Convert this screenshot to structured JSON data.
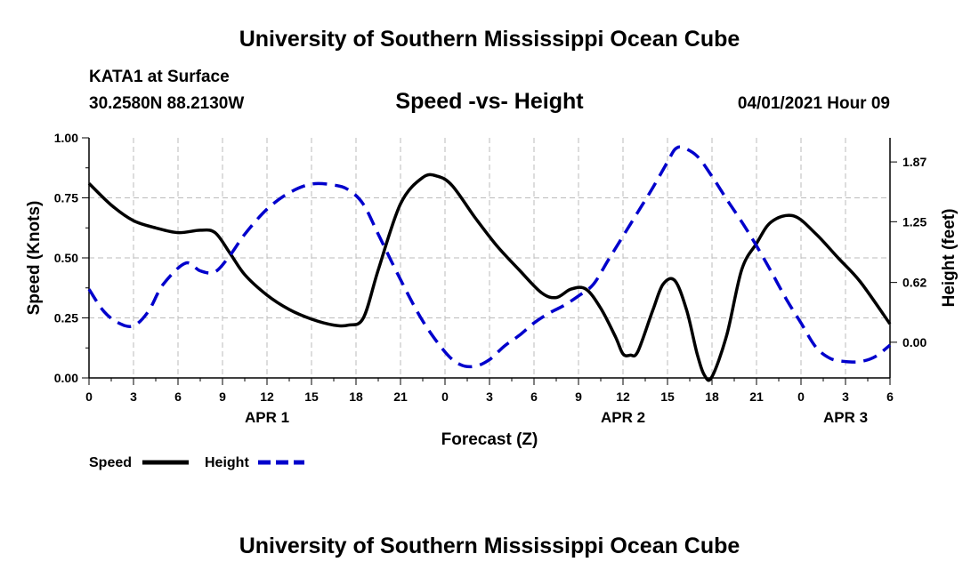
{
  "header": {
    "title": "University of Southern Mississippi Ocean Cube",
    "station": "KATA1 at Surface",
    "coordinates": "30.2580N  88.2130W",
    "datetime": "04/01/2021 Hour 09"
  },
  "footer": {
    "title": "University of Southern Mississippi Ocean Cube"
  },
  "chart_data": {
    "type": "line",
    "title": "Speed -vs- Height",
    "xlabel": "Forecast (Z)",
    "ylabel": "Speed (Knots)",
    "ylabel_right": "Height (feet)",
    "xlim": [
      0,
      54
    ],
    "ylim": [
      0,
      1.0
    ],
    "ylim_right": [
      -0.37,
      2.12
    ],
    "grid": true,
    "x_ticks": [
      0,
      3,
      6,
      9,
      12,
      15,
      18,
      21,
      24,
      27,
      30,
      33,
      36,
      39,
      42,
      45,
      48,
      51,
      54
    ],
    "x_tick_labels": [
      "0",
      "3",
      "6",
      "9",
      "12",
      "15",
      "18",
      "21",
      "0",
      "3",
      "6",
      "9",
      "12",
      "15",
      "18",
      "21",
      "0",
      "3",
      "6"
    ],
    "y_ticks": [
      0,
      0.25,
      0.5,
      0.75,
      1.0
    ],
    "y_tick_labels": [
      "0.00",
      "0.25",
      "0.50",
      "0.75",
      "1.00"
    ],
    "y_right_ticks": [
      0,
      0.62,
      1.25,
      1.87
    ],
    "y_right_tick_labels": [
      "0.00",
      "0.62",
      "1.25",
      "1.87"
    ],
    "date_labels": [
      {
        "x": 12,
        "label": "APR 1"
      },
      {
        "x": 36,
        "label": "APR 2"
      },
      {
        "x": 51,
        "label": "APR 3"
      }
    ],
    "legend": {
      "position": "bottom-left",
      "entries": [
        "Speed",
        "Height"
      ]
    },
    "series": [
      {
        "name": "Speed",
        "axis": "left",
        "color": "#000000",
        "dash": "solid",
        "x": [
          0,
          1.5,
          3,
          4.5,
          6,
          7.5,
          8.5,
          9.5,
          10.5,
          12,
          13.5,
          15,
          16.5,
          17.5,
          18.5,
          19.5,
          21,
          22.5,
          23.5,
          24.5,
          26,
          27.5,
          29,
          30.5,
          31.5,
          32.5,
          33.5,
          34.5,
          35.5,
          36,
          36.5,
          37,
          38,
          38.7,
          39.5,
          40.3,
          41,
          41.5,
          42,
          43,
          44,
          45,
          46,
          47.5,
          49,
          50.5,
          52,
          54
        ],
        "values": [
          0.81,
          0.72,
          0.655,
          0.625,
          0.605,
          0.615,
          0.605,
          0.52,
          0.43,
          0.345,
          0.285,
          0.245,
          0.22,
          0.22,
          0.25,
          0.45,
          0.725,
          0.835,
          0.84,
          0.8,
          0.67,
          0.55,
          0.45,
          0.355,
          0.335,
          0.37,
          0.37,
          0.29,
          0.17,
          0.1,
          0.095,
          0.11,
          0.28,
          0.39,
          0.405,
          0.28,
          0.1,
          0.01,
          0.005,
          0.18,
          0.45,
          0.56,
          0.65,
          0.675,
          0.6,
          0.5,
          0.4,
          0.225
        ]
      },
      {
        "name": "Height",
        "axis": "right",
        "color": "#0000cc",
        "dash": "dashed",
        "x": [
          0,
          1,
          2,
          3,
          4,
          5,
          6.5,
          7.5,
          8.5,
          9.5,
          10.5,
          12,
          13.5,
          15,
          16.5,
          17.5,
          18.5,
          19.5,
          21,
          22.5,
          24,
          25,
          26,
          27,
          28,
          29,
          30,
          31,
          32,
          33,
          34,
          35,
          36,
          37,
          38,
          39,
          39.5,
          40,
          41,
          42,
          43,
          44,
          45,
          46,
          47,
          48,
          49,
          50,
          51,
          52,
          53,
          54
        ],
        "values": [
          0.55,
          0.32,
          0.2,
          0.17,
          0.32,
          0.6,
          0.82,
          0.74,
          0.73,
          0.9,
          1.12,
          1.38,
          1.55,
          1.64,
          1.63,
          1.58,
          1.43,
          1.12,
          0.65,
          0.22,
          -0.1,
          -0.23,
          -0.25,
          -0.18,
          -0.04,
          0.07,
          0.2,
          0.3,
          0.38,
          0.48,
          0.6,
          0.85,
          1.1,
          1.35,
          1.6,
          1.87,
          2.0,
          2.02,
          1.93,
          1.72,
          1.48,
          1.25,
          1.0,
          0.73,
          0.45,
          0.2,
          -0.05,
          -0.17,
          -0.2,
          -0.2,
          -0.15,
          -0.03
        ]
      }
    ]
  }
}
